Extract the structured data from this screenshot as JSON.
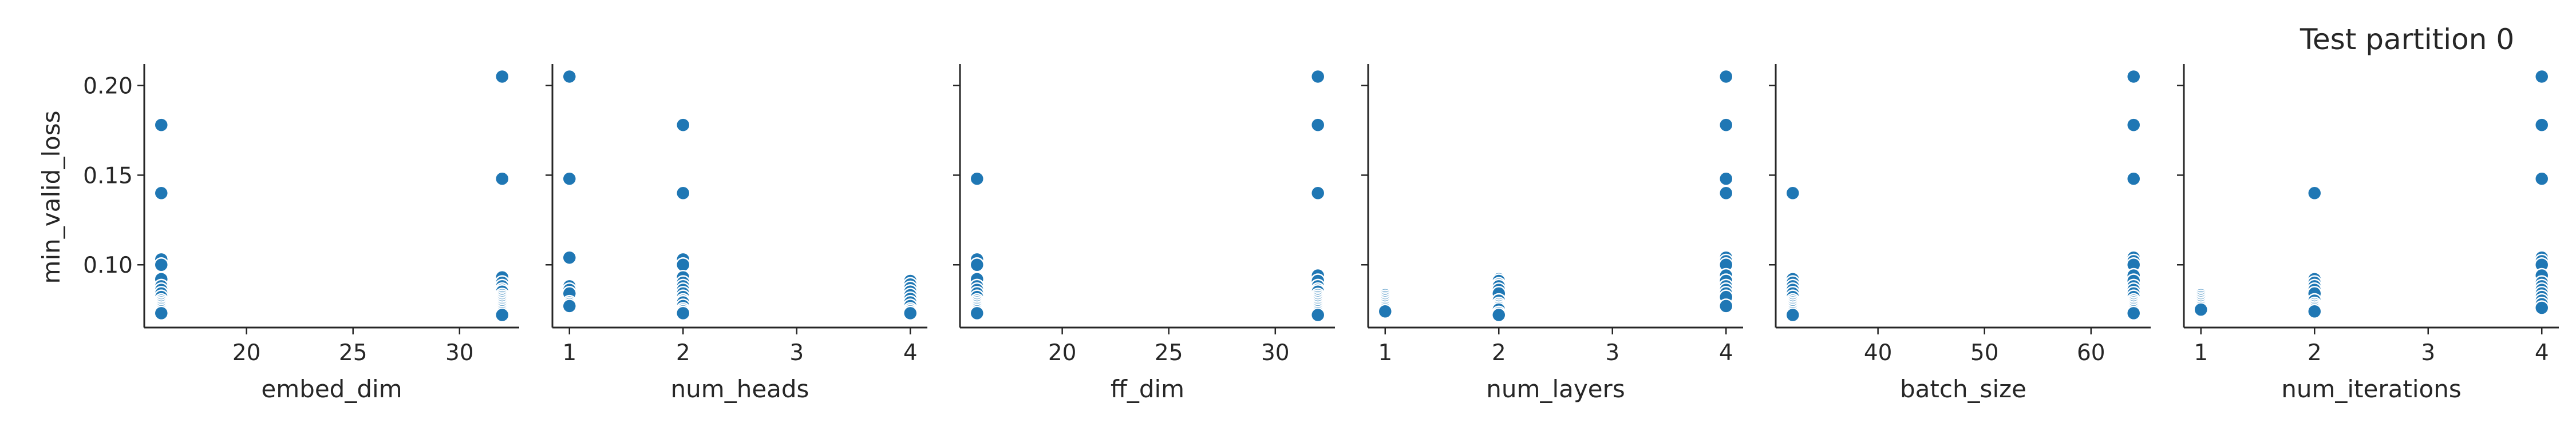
{
  "chart_data": {
    "type": "scatter",
    "title": "Test partition 0",
    "ylabel": "min_valid_loss",
    "ylim": [
      0.065,
      0.212
    ],
    "yticks": [
      0.1,
      0.15,
      0.2
    ],
    "ytick_labels": [
      "0.10",
      "0.15",
      "0.20"
    ],
    "color": "#1f77b4",
    "panels": [
      {
        "xlabel": "embed_dim",
        "xlim": [
          15.2,
          32.8
        ],
        "xticks": [
          20,
          25,
          30
        ],
        "xtick_labels": [
          "20",
          "25",
          "30"
        ],
        "x": [
          16,
          16,
          16,
          16,
          16,
          16,
          16,
          16,
          16,
          16,
          16,
          16,
          16,
          16,
          16,
          16,
          16,
          32,
          32,
          32,
          32,
          32,
          32,
          32,
          32,
          32,
          32,
          32,
          32,
          32,
          32,
          32,
          32,
          32,
          32,
          32
        ],
        "y": [
          0.178,
          0.14,
          0.103,
          0.1,
          0.092,
          0.088,
          0.086,
          0.084,
          0.082,
          0.08,
          0.079,
          0.078,
          0.077,
          0.076,
          0.075,
          0.074,
          0.073,
          0.205,
          0.148,
          0.093,
          0.09,
          0.088,
          0.086,
          0.085,
          0.083,
          0.082,
          0.081,
          0.08,
          0.079,
          0.078,
          0.077,
          0.076,
          0.075,
          0.074,
          0.073,
          0.072
        ]
      },
      {
        "xlabel": "num_heads",
        "xlim": [
          0.85,
          4.15
        ],
        "xticks": [
          1,
          2,
          3,
          4
        ],
        "xtick_labels": [
          "1",
          "2",
          "3",
          "4"
        ],
        "x": [
          1,
          1,
          1,
          1,
          1,
          1,
          1,
          1,
          1,
          2,
          2,
          2,
          2,
          2,
          2,
          2,
          2,
          2,
          2,
          2,
          2,
          2,
          2,
          2,
          2,
          4,
          4,
          4,
          4,
          4,
          4,
          4,
          4,
          4,
          4,
          4
        ],
        "y": [
          0.205,
          0.148,
          0.104,
          0.088,
          0.086,
          0.084,
          0.079,
          0.078,
          0.077,
          0.178,
          0.14,
          0.103,
          0.1,
          0.093,
          0.09,
          0.088,
          0.086,
          0.084,
          0.082,
          0.08,
          0.079,
          0.077,
          0.075,
          0.074,
          0.073,
          0.091,
          0.089,
          0.087,
          0.085,
          0.083,
          0.081,
          0.079,
          0.077,
          0.075,
          0.074,
          0.073
        ]
      },
      {
        "xlabel": "ff_dim",
        "xlim": [
          15.2,
          32.8
        ],
        "xticks": [
          20,
          25,
          30
        ],
        "xtick_labels": [
          "20",
          "25",
          "30"
        ],
        "x": [
          16,
          16,
          16,
          16,
          16,
          16,
          16,
          16,
          16,
          16,
          16,
          16,
          16,
          16,
          16,
          16,
          32,
          32,
          32,
          32,
          32,
          32,
          32,
          32,
          32,
          32,
          32,
          32,
          32,
          32,
          32,
          32,
          32,
          32,
          32,
          32
        ],
        "y": [
          0.148,
          0.103,
          0.1,
          0.092,
          0.088,
          0.086,
          0.084,
          0.082,
          0.08,
          0.079,
          0.078,
          0.077,
          0.076,
          0.075,
          0.074,
          0.073,
          0.205,
          0.178,
          0.14,
          0.094,
          0.091,
          0.088,
          0.086,
          0.085,
          0.083,
          0.082,
          0.081,
          0.08,
          0.079,
          0.078,
          0.077,
          0.076,
          0.075,
          0.074,
          0.073,
          0.072
        ]
      },
      {
        "xlabel": "num_layers",
        "xlim": [
          0.85,
          4.15
        ],
        "xticks": [
          1,
          2,
          3,
          4
        ],
        "xtick_labels": [
          "1",
          "2",
          "3",
          "4"
        ],
        "x": [
          1,
          1,
          1,
          1,
          1,
          1,
          1,
          1,
          1,
          1,
          2,
          2,
          2,
          2,
          2,
          2,
          2,
          2,
          2,
          2,
          2,
          2,
          2,
          4,
          4,
          4,
          4,
          4,
          4,
          4,
          4,
          4,
          4,
          4,
          4,
          4,
          4
        ],
        "y": [
          0.083,
          0.082,
          0.081,
          0.08,
          0.079,
          0.078,
          0.077,
          0.076,
          0.075,
          0.074,
          0.092,
          0.091,
          0.089,
          0.088,
          0.086,
          0.084,
          0.08,
          0.078,
          0.077,
          0.076,
          0.075,
          0.073,
          0.072,
          0.205,
          0.178,
          0.148,
          0.14,
          0.104,
          0.102,
          0.1,
          0.094,
          0.091,
          0.088,
          0.086,
          0.084,
          0.082,
          0.077
        ]
      },
      {
        "xlabel": "batch_size",
        "xlim": [
          30.4,
          65.6
        ],
        "xticks": [
          40,
          50,
          60
        ],
        "xtick_labels": [
          "40",
          "50",
          "60"
        ],
        "x": [
          32,
          32,
          32,
          32,
          32,
          32,
          32,
          32,
          32,
          32,
          32,
          32,
          32,
          32,
          32,
          32,
          64,
          64,
          64,
          64,
          64,
          64,
          64,
          64,
          64,
          64,
          64,
          64,
          64,
          64,
          64,
          64,
          64,
          64,
          64,
          64
        ],
        "y": [
          0.14,
          0.092,
          0.09,
          0.088,
          0.086,
          0.084,
          0.082,
          0.08,
          0.079,
          0.078,
          0.077,
          0.076,
          0.075,
          0.074,
          0.073,
          0.072,
          0.205,
          0.178,
          0.148,
          0.104,
          0.102,
          0.1,
          0.094,
          0.091,
          0.088,
          0.086,
          0.084,
          0.082,
          0.08,
          0.079,
          0.078,
          0.077,
          0.076,
          0.075,
          0.074,
          0.073
        ]
      },
      {
        "xlabel": "num_iterations",
        "xlim": [
          0.85,
          4.15
        ],
        "xticks": [
          1,
          2,
          3,
          4
        ],
        "xtick_labels": [
          "1",
          "2",
          "3",
          "4"
        ],
        "x": [
          1,
          1,
          1,
          1,
          1,
          1,
          1,
          1,
          1,
          2,
          2,
          2,
          2,
          2,
          2,
          2,
          2,
          2,
          2,
          2,
          2,
          4,
          4,
          4,
          4,
          4,
          4,
          4,
          4,
          4,
          4,
          4,
          4,
          4,
          4,
          4
        ],
        "y": [
          0.083,
          0.082,
          0.081,
          0.08,
          0.079,
          0.078,
          0.077,
          0.076,
          0.075,
          0.14,
          0.092,
          0.09,
          0.088,
          0.086,
          0.084,
          0.08,
          0.078,
          0.077,
          0.076,
          0.075,
          0.074,
          0.205,
          0.178,
          0.148,
          0.104,
          0.102,
          0.1,
          0.094,
          0.09,
          0.088,
          0.086,
          0.084,
          0.082,
          0.08,
          0.078,
          0.076
        ]
      }
    ]
  }
}
